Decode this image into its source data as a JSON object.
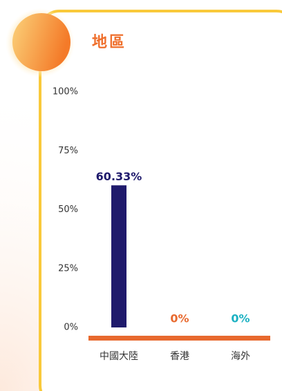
{
  "chart_data": {
    "type": "bar",
    "title": "地區",
    "categories": [
      "中國大陸",
      "香港",
      "海外"
    ],
    "values": [
      60.33,
      0,
      0
    ],
    "value_labels": [
      "60.33%",
      "0%",
      "0%"
    ],
    "colors": [
      "#1f1a6c",
      "#e8692e",
      "#1cb1c2"
    ],
    "ylim": [
      0,
      100
    ],
    "yticks": [
      {
        "value": 0,
        "label": "0%"
      },
      {
        "value": 25,
        "label": "25%"
      },
      {
        "value": 50,
        "label": "50%"
      },
      {
        "value": 75,
        "label": "75%"
      },
      {
        "value": 100,
        "label": "100%"
      }
    ]
  }
}
